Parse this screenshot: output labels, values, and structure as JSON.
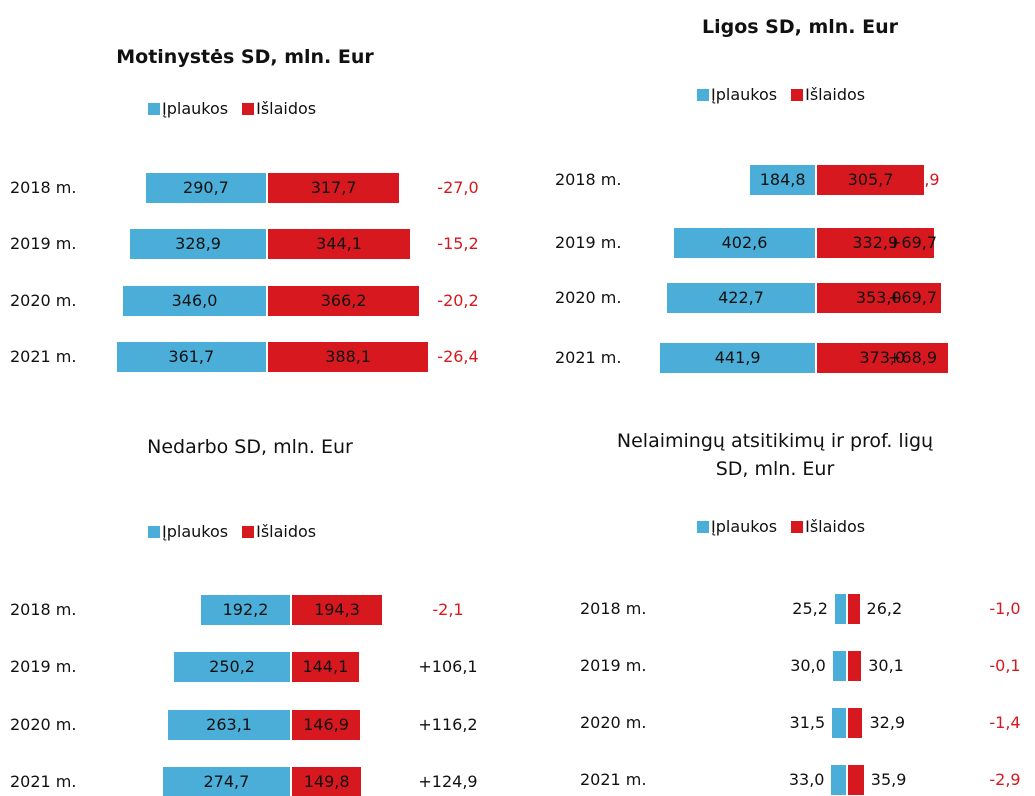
{
  "chart_data": [
    {
      "type": "diverging_bar",
      "title": "Motinystės SD, mln. Eur",
      "categories": [
        "2018 m.",
        "2019 m.",
        "2020 m.",
        "2021 m."
      ],
      "series": [
        {
          "name": "Įplaukos",
          "color": "#4aaed9",
          "values": [
            290.7,
            328.9,
            346.0,
            361.7
          ],
          "value_labels": [
            "290,7",
            "328,9",
            "346,0",
            "361,7"
          ]
        },
        {
          "name": "Išlaidos",
          "color": "#d7191f",
          "values": [
            317.7,
            344.1,
            366.2,
            388.1
          ],
          "value_labels": [
            "317,7",
            "344,1",
            "366,2",
            "388,1"
          ]
        }
      ],
      "differences": [
        -27.0,
        -15.2,
        -20.2,
        -26.4
      ],
      "difference_labels": [
        "-27,0",
        "-15,2",
        "-20,2",
        "-26,4"
      ]
    },
    {
      "type": "diverging_bar",
      "title": "Ligos SD, mln. Eur",
      "categories": [
        "2018 m.",
        "2019 m.",
        "2020 m.",
        "2021 m."
      ],
      "series": [
        {
          "name": "Įplaukos",
          "color": "#4aaed9",
          "values": [
            184.8,
            402.6,
            422.7,
            441.9
          ],
          "value_labels": [
            "184,8",
            "402,6",
            "422,7",
            "441,9"
          ]
        },
        {
          "name": "Išlaidos",
          "color": "#d7191f",
          "values": [
            305.7,
            332.9,
            353.0,
            373.0
          ],
          "value_labels": [
            "305,7",
            "332,9",
            "353,0",
            "373,0"
          ]
        }
      ],
      "differences": [
        -120.9,
        69.7,
        69.7,
        68.9
      ],
      "difference_labels": [
        "-120,9",
        "+69,7",
        "+69,7",
        "+68,9"
      ]
    },
    {
      "type": "diverging_bar",
      "title": "Nedarbo SD, mln. Eur",
      "categories": [
        "2018 m.",
        "2019 m.",
        "2020 m.",
        "2021 m."
      ],
      "series": [
        {
          "name": "Įplaukos",
          "color": "#4aaed9",
          "values": [
            192.2,
            250.2,
            263.1,
            274.7
          ],
          "value_labels": [
            "192,2",
            "250,2",
            "263,1",
            "274,7"
          ]
        },
        {
          "name": "Išlaidos",
          "color": "#d7191f",
          "values": [
            194.3,
            144.1,
            146.9,
            149.8
          ],
          "value_labels": [
            "194,3",
            "144,1",
            "146,9",
            "149,8"
          ]
        }
      ],
      "differences": [
        -2.1,
        106.1,
        116.2,
        124.9
      ],
      "difference_labels": [
        "-2,1",
        "+106,1",
        "+116,2",
        "+124,9"
      ]
    },
    {
      "type": "diverging_bar",
      "title": "Nelaimingų atsitikimų ir prof. ligų SD, mln. Eur",
      "categories": [
        "2018 m.",
        "2019 m.",
        "2020 m.",
        "2021 m."
      ],
      "series": [
        {
          "name": "Įplaukos",
          "color": "#4aaed9",
          "values": [
            25.2,
            30.0,
            31.5,
            33.0
          ],
          "value_labels": [
            "25,2",
            "30,0",
            "31,5",
            "33,0"
          ]
        },
        {
          "name": "Išlaidos",
          "color": "#d7191f",
          "values": [
            26.2,
            30.1,
            32.9,
            35.9
          ],
          "value_labels": [
            "26,2",
            "30,1",
            "32,9",
            "35,9"
          ]
        }
      ],
      "differences": [
        -1.0,
        -0.1,
        -1.4,
        -2.9
      ],
      "difference_labels": [
        "-1,0",
        "-0,1",
        "-1,4",
        "-2,9"
      ]
    }
  ]
}
